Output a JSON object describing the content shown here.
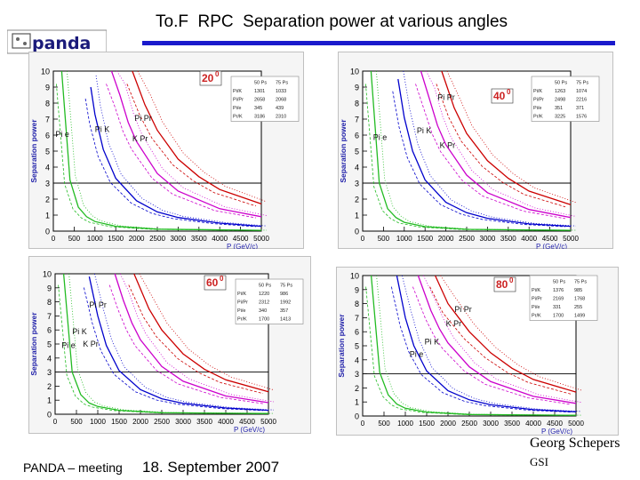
{
  "slide": {
    "title": "To.F  RPC  Separation power at various angles",
    "logo_text": "panda",
    "footer_left": "PANDA – meeting",
    "footer_date": "18. September 2007",
    "author": "Georg Schepers",
    "institute": "GSI"
  },
  "colors": {
    "title_rule": "#1a1acc",
    "pi_e": "#22bb22",
    "pi_k": "#0000cc",
    "k_pr": "#cc00cc",
    "pi_pr": "#cc0000",
    "angle_label": "#cc2222"
  },
  "chart_data": [
    {
      "type": "line",
      "angle_label": "20",
      "angle_sup": "0",
      "xlabel": "P (GeV/c)",
      "ylabel": "Separation power",
      "xlim": [
        0,
        5000
      ],
      "ylim": [
        0,
        10
      ],
      "xticks": [
        "0",
        "500",
        "1000",
        "1500",
        "2000",
        "2500",
        "3000",
        "3500",
        "4000",
        "4500",
        "5000"
      ],
      "yticks": [
        "0",
        "1",
        "2",
        "3",
        "4",
        "5",
        "6",
        "7",
        "8",
        "9",
        "10"
      ],
      "threshold": 3,
      "series": [
        {
          "name": "Pi e",
          "color": "#22bb22",
          "points": [
            [
              200,
              10
            ],
            [
              400,
              3.2
            ],
            [
              600,
              1.5
            ],
            [
              800,
              0.9
            ],
            [
              1000,
              0.6
            ],
            [
              1500,
              0.3
            ],
            [
              2500,
              0.12
            ],
            [
              5000,
              0.05
            ]
          ]
        },
        {
          "name": "Pi K",
          "color": "#0000cc",
          "points": [
            [
              900,
              9.0
            ],
            [
              1000,
              7.3
            ],
            [
              1200,
              5.1
            ],
            [
              1500,
              3.3
            ],
            [
              2000,
              1.9
            ],
            [
              2500,
              1.2
            ],
            [
              3000,
              0.85
            ],
            [
              4000,
              0.5
            ],
            [
              5000,
              0.3
            ]
          ]
        },
        {
          "name": "K Pr",
          "color": "#cc00cc",
          "points": [
            [
              1400,
              10
            ],
            [
              1600,
              8.5
            ],
            [
              1800,
              6.8
            ],
            [
              2000,
              5.6
            ],
            [
              2500,
              3.6
            ],
            [
              3000,
              2.5
            ],
            [
              4000,
              1.4
            ],
            [
              5000,
              0.9
            ]
          ]
        },
        {
          "name": "Pi Pr",
          "color": "#cc0000",
          "points": [
            [
              1900,
              10
            ],
            [
              2200,
              7.9
            ],
            [
              2500,
              6.3
            ],
            [
              3000,
              4.5
            ],
            [
              3500,
              3.4
            ],
            [
              4000,
              2.6
            ],
            [
              5000,
              1.7
            ]
          ]
        }
      ],
      "labels": [
        {
          "text": "Pi e",
          "x": 50,
          "y": 5.9
        },
        {
          "text": "Pi K",
          "x": 1000,
          "y": 6.2
        },
        {
          "text": "Pi Pr",
          "x": 1950,
          "y": 6.9
        },
        {
          "text": "K Pr",
          "x": 1900,
          "y": 5.6
        }
      ],
      "table": [
        [
          "",
          "50 Ps",
          "75 Ps"
        ],
        [
          "Pi/K",
          "1301",
          "1033"
        ],
        [
          "Pi/Pr",
          "2658",
          "2068"
        ],
        [
          "Pi/e",
          "345",
          "439"
        ],
        [
          "Pr/K",
          "3186",
          "2310"
        ]
      ]
    },
    {
      "type": "line",
      "angle_label": "40",
      "angle_sup": "0",
      "xlabel": "P (GeV/c)",
      "ylabel": "Separation power",
      "xlim": [
        0,
        5000
      ],
      "ylim": [
        0,
        10
      ],
      "xticks": [
        "0",
        "500",
        "1000",
        "1500",
        "2000",
        "2500",
        "3000",
        "3500",
        "4000",
        "4500",
        "5000"
      ],
      "yticks": [
        "0",
        "1",
        "2",
        "3",
        "4",
        "5",
        "6",
        "7",
        "8",
        "9",
        "10"
      ],
      "threshold": 3,
      "series": [
        {
          "name": "Pi e",
          "color": "#22bb22",
          "points": [
            [
              200,
              10
            ],
            [
              400,
              3.0
            ],
            [
              600,
              1.4
            ],
            [
              800,
              0.85
            ],
            [
              1000,
              0.55
            ],
            [
              1500,
              0.28
            ],
            [
              2500,
              0.11
            ],
            [
              5000,
              0.05
            ]
          ]
        },
        {
          "name": "Pi K",
          "color": "#0000cc",
          "points": [
            [
              850,
              9.5
            ],
            [
              1000,
              7.1
            ],
            [
              1200,
              5.0
            ],
            [
              1500,
              3.2
            ],
            [
              2000,
              1.8
            ],
            [
              2500,
              1.15
            ],
            [
              3000,
              0.8
            ],
            [
              4000,
              0.45
            ],
            [
              5000,
              0.3
            ]
          ]
        },
        {
          "name": "K Pr",
          "color": "#cc00cc",
          "points": [
            [
              1400,
              10
            ],
            [
              1600,
              8.3
            ],
            [
              1800,
              6.6
            ],
            [
              2000,
              5.4
            ],
            [
              2500,
              3.5
            ],
            [
              3000,
              2.4
            ],
            [
              4000,
              1.35
            ],
            [
              5000,
              0.85
            ]
          ]
        },
        {
          "name": "Pi Pr",
          "color": "#cc0000",
          "points": [
            [
              1900,
              10
            ],
            [
              2200,
              7.7
            ],
            [
              2500,
              6.1
            ],
            [
              3000,
              4.4
            ],
            [
              3500,
              3.3
            ],
            [
              4000,
              2.5
            ],
            [
              5000,
              1.65
            ]
          ]
        }
      ],
      "labels": [
        {
          "text": "Pi e",
          "x": 250,
          "y": 5.7
        },
        {
          "text": "Pi K",
          "x": 1300,
          "y": 6.1
        },
        {
          "text": "Pi Pr",
          "x": 1800,
          "y": 8.2
        },
        {
          "text": "K Pr",
          "x": 1850,
          "y": 5.2
        }
      ],
      "table": [
        [
          "",
          "50 Ps",
          "75 Ps"
        ],
        [
          "Pi/K",
          "1263",
          "1074"
        ],
        [
          "Pi/Pr",
          "2498",
          "2216"
        ],
        [
          "Pi/e",
          "351",
          "371"
        ],
        [
          "Pr/K",
          "3225",
          "1576"
        ]
      ]
    },
    {
      "type": "line",
      "angle_label": "60",
      "angle_sup": "0",
      "xlabel": "P (GeV/c)",
      "ylabel": "Separation power",
      "xlim": [
        0,
        5000
      ],
      "ylim": [
        0,
        10
      ],
      "xticks": [
        "0",
        "500",
        "1000",
        "1500",
        "2000",
        "2500",
        "3000",
        "3500",
        "4000",
        "4500",
        "5000"
      ],
      "yticks": [
        "0",
        "1",
        "2",
        "3",
        "4",
        "5",
        "6",
        "7",
        "8",
        "9",
        "10"
      ],
      "threshold": 3,
      "series": [
        {
          "name": "Pi e",
          "color": "#22bb22",
          "points": [
            [
              200,
              10
            ],
            [
              400,
              3.0
            ],
            [
              600,
              1.4
            ],
            [
              800,
              0.8
            ],
            [
              1000,
              0.55
            ],
            [
              1500,
              0.28
            ],
            [
              2500,
              0.11
            ],
            [
              5000,
              0.05
            ]
          ]
        },
        {
          "name": "Pi K",
          "color": "#0000cc",
          "points": [
            [
              800,
              9.8
            ],
            [
              1000,
              7.0
            ],
            [
              1200,
              4.9
            ],
            [
              1500,
              3.1
            ],
            [
              2000,
              1.75
            ],
            [
              2500,
              1.1
            ],
            [
              3000,
              0.78
            ],
            [
              4000,
              0.44
            ],
            [
              5000,
              0.28
            ]
          ]
        },
        {
          "name": "K Pr",
          "color": "#cc00cc",
          "points": [
            [
              1400,
              10
            ],
            [
              1600,
              8.1
            ],
            [
              1800,
              6.5
            ],
            [
              2000,
              5.3
            ],
            [
              2500,
              3.4
            ],
            [
              3000,
              2.35
            ],
            [
              4000,
              1.3
            ],
            [
              5000,
              0.82
            ]
          ]
        },
        {
          "name": "Pi Pr",
          "color": "#cc0000",
          "points": [
            [
              1850,
              10
            ],
            [
              2200,
              7.5
            ],
            [
              2500,
              6.0
            ],
            [
              3000,
              4.3
            ],
            [
              3500,
              3.2
            ],
            [
              4000,
              2.45
            ],
            [
              5000,
              1.6
            ]
          ]
        }
      ],
      "labels": [
        {
          "text": "Pi e",
          "x": 150,
          "y": 4.7
        },
        {
          "text": "Pi K",
          "x": 400,
          "y": 5.7
        },
        {
          "text": "Pi Pr",
          "x": 800,
          "y": 7.6
        },
        {
          "text": "K Pr",
          "x": 650,
          "y": 4.8
        }
      ],
      "table": [
        [
          "",
          "50 Ps",
          "75 Ps"
        ],
        [
          "Pi/K",
          "1220",
          "986"
        ],
        [
          "Pi/Pr",
          "2312",
          "1992"
        ],
        [
          "Pi/e",
          "340",
          "357"
        ],
        [
          "Pr/K",
          "1700",
          "1413"
        ]
      ]
    },
    {
      "type": "line",
      "angle_label": "80",
      "angle_sup": "0",
      "xlabel": "P (GeV/c)",
      "ylabel": "Separation power",
      "xlim": [
        0,
        5000
      ],
      "ylim": [
        0,
        10
      ],
      "xticks": [
        "0",
        "500",
        "1000",
        "1500",
        "2000",
        "2500",
        "3000",
        "3500",
        "4000",
        "4500",
        "5000"
      ],
      "yticks": [
        "0",
        "1",
        "2",
        "3",
        "4",
        "5",
        "6",
        "7",
        "8",
        "9",
        "10"
      ],
      "threshold": 3,
      "series": [
        {
          "name": "Pi e",
          "color": "#22bb22",
          "points": [
            [
              200,
              10
            ],
            [
              400,
              3.1
            ],
            [
              600,
              1.5
            ],
            [
              800,
              0.85
            ],
            [
              1000,
              0.55
            ],
            [
              1500,
              0.28
            ],
            [
              2500,
              0.11
            ],
            [
              5000,
              0.05
            ]
          ]
        },
        {
          "name": "Pi K",
          "color": "#0000cc",
          "points": [
            [
              800,
              10
            ],
            [
              1000,
              7.0
            ],
            [
              1200,
              5.0
            ],
            [
              1500,
              3.2
            ],
            [
              2000,
              1.8
            ],
            [
              2500,
              1.15
            ],
            [
              3000,
              0.8
            ],
            [
              4000,
              0.45
            ],
            [
              5000,
              0.3
            ]
          ]
        },
        {
          "name": "K Pr",
          "color": "#cc00cc",
          "points": [
            [
              1300,
              10
            ],
            [
              1600,
              7.5
            ],
            [
              1800,
              6.2
            ],
            [
              2000,
              5.2
            ],
            [
              2500,
              3.5
            ],
            [
              3000,
              2.45
            ],
            [
              4000,
              1.4
            ],
            [
              5000,
              0.9
            ]
          ]
        },
        {
          "name": "Pi Pr",
          "color": "#cc0000",
          "points": [
            [
              1700,
              10
            ],
            [
              2000,
              8.0
            ],
            [
              2500,
              6.0
            ],
            [
              3000,
              4.5
            ],
            [
              3500,
              3.4
            ],
            [
              4000,
              2.6
            ],
            [
              5000,
              1.7
            ]
          ]
        }
      ],
      "labels": [
        {
          "text": "Pi e",
          "x": 1100,
          "y": 4.2
        },
        {
          "text": "Pi K",
          "x": 1450,
          "y": 5.1
        },
        {
          "text": "Pi Pr",
          "x": 2150,
          "y": 7.4
        },
        {
          "text": "K Pr",
          "x": 1950,
          "y": 6.4
        }
      ],
      "table": [
        [
          "",
          "50 Ps",
          "75 Ps"
        ],
        [
          "Pi/K",
          "1376",
          "985"
        ],
        [
          "Pi/Pr",
          "2169",
          "1768"
        ],
        [
          "Pi/e",
          "331",
          "255"
        ],
        [
          "Pr/K",
          "1700",
          "1499"
        ]
      ]
    }
  ]
}
